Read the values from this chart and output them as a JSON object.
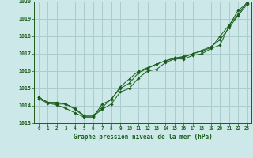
{
  "title": "Graphe pression niveau de la mer (hPa)",
  "bg_color": "#cce8e8",
  "grid_color": "#aacccc",
  "line_color": "#1a5c1a",
  "marker_color": "#1a5c1a",
  "xlim": [
    -0.5,
    23.5
  ],
  "ylim": [
    1013,
    1020
  ],
  "yticks": [
    1013,
    1014,
    1015,
    1016,
    1017,
    1018,
    1019,
    1020
  ],
  "xticks": [
    0,
    1,
    2,
    3,
    4,
    5,
    6,
    7,
    8,
    9,
    10,
    11,
    12,
    13,
    14,
    15,
    16,
    17,
    18,
    19,
    20,
    21,
    22,
    23
  ],
  "series": [
    [
      1014.5,
      1014.2,
      1014.2,
      1014.1,
      1013.8,
      1013.4,
      1013.4,
      1013.8,
      1014.1,
      1014.8,
      1015.0,
      1015.6,
      1016.0,
      1016.1,
      1016.5,
      1016.7,
      1016.7,
      1016.9,
      1017.0,
      1017.3,
      1017.5,
      1018.6,
      1019.5,
      1019.9
    ],
    [
      1014.5,
      1014.2,
      1014.1,
      1014.1,
      1013.85,
      1013.45,
      1013.45,
      1013.9,
      1014.4,
      1015.0,
      1015.3,
      1015.9,
      1016.15,
      1016.4,
      1016.6,
      1016.75,
      1016.8,
      1017.0,
      1017.2,
      1017.4,
      1017.8,
      1018.5,
      1019.2,
      1019.85
    ],
    [
      1014.4,
      1014.15,
      1014.05,
      1013.85,
      1013.6,
      1013.35,
      1013.35,
      1014.1,
      1014.35,
      1015.1,
      1015.55,
      1016.0,
      1016.2,
      1016.4,
      1016.6,
      1016.75,
      1016.85,
      1017.0,
      1017.15,
      1017.35,
      1018.0,
      1018.65,
      1019.25,
      1020.0
    ]
  ]
}
